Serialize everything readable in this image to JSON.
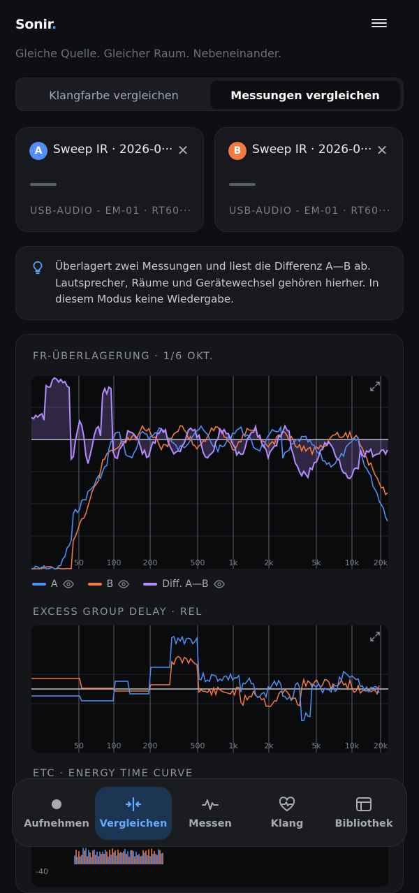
{
  "app": {
    "brand": "Sonir",
    "brand_dot": ".",
    "subtitle": "Gleiche Quelle. Gleicher Raum. Nebeneinander.",
    "accent": "#4ea1ff"
  },
  "segments": [
    {
      "label": "Klangfarbe vergleichen",
      "active": false
    },
    {
      "label": "Messungen vergleichen",
      "active": true
    }
  ],
  "measurements": {
    "a": {
      "badge": "A",
      "title": "Sweep IR · 2026-0···",
      "value": "——",
      "device": "USB-AUDIO - EM-01 · RT60···",
      "color": "#4f8ff7"
    },
    "b": {
      "badge": "B",
      "title": "Sweep IR · 2026-0···",
      "value": "——",
      "device": "USB-AUDIO - EM-01 · RT60···",
      "color": "#f17a43"
    }
  },
  "info": {
    "icon": "lightbulb-icon",
    "text": "Überlagert zwei Messungen und liest die Differenz A—B ab. Lautsprecher, Räume und Gerätewechsel gehören hierher. In diesem Modus keine Wiedergabe."
  },
  "sections": {
    "fr": "FR-ÜBERLAGERUNG · 1/6 OKT.",
    "gd": "EXCESS GROUP DELAY · REL",
    "etc": "ETC · ENERGY TIME CURVE",
    "etc_tick": "-40"
  },
  "freq_ticks": [
    "50",
    "100",
    "200",
    "500",
    "1k",
    "2k",
    "5k",
    "10k",
    "20k"
  ],
  "legend": [
    {
      "label": "A",
      "color": "#4f8ff7"
    },
    {
      "label": "B",
      "color": "#f17a43"
    },
    {
      "label": "Diff. A—B",
      "color": "#b48cff"
    }
  ],
  "tabs": [
    {
      "label": "Aufnehmen",
      "icon": "record-dot-icon",
      "active": false
    },
    {
      "label": "Vergleichen",
      "icon": "compare-icon",
      "active": true
    },
    {
      "label": "Messen",
      "icon": "waveform-icon",
      "active": false
    },
    {
      "label": "Klang",
      "icon": "heart-pulse-icon",
      "active": false
    },
    {
      "label": "Bibliothek",
      "icon": "library-icon",
      "active": false
    }
  ]
}
